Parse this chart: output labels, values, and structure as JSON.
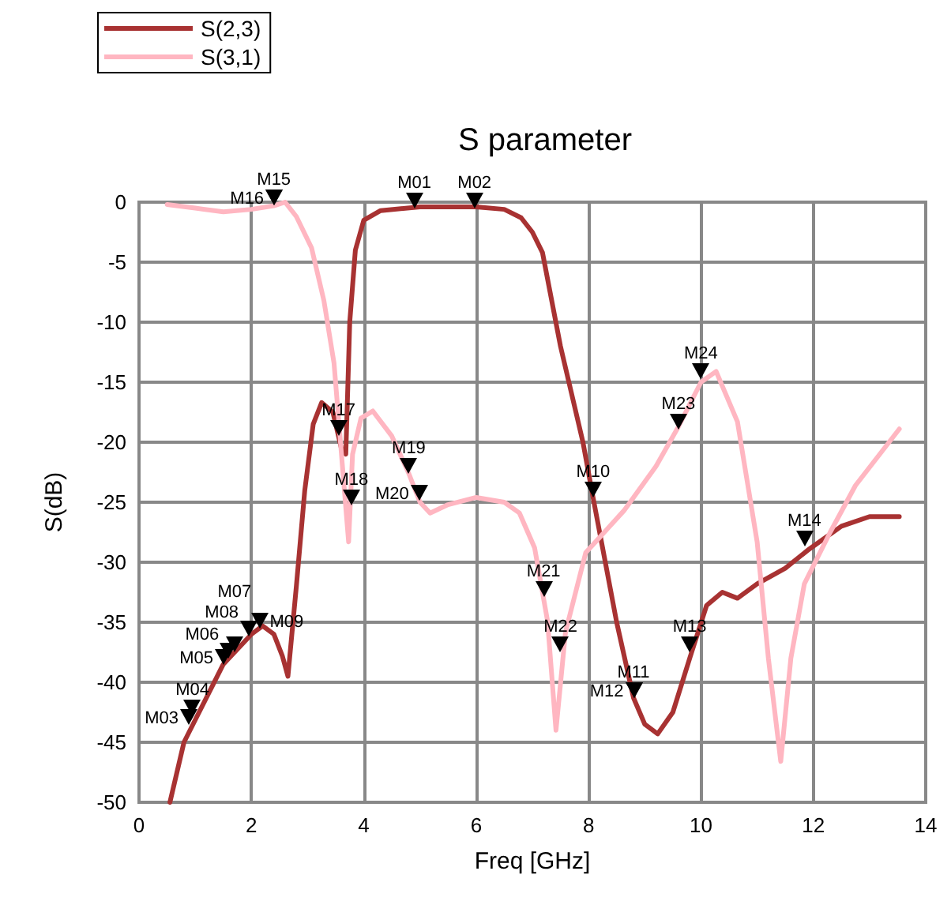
{
  "chart_data": {
    "type": "line",
    "title": "S parameter",
    "xlabel": "Freq [GHz]",
    "ylabel": "S(dB)",
    "xlim": [
      0,
      14
    ],
    "xticks": [
      0,
      2,
      4,
      6,
      8,
      10,
      12,
      14
    ],
    "ylim": [
      -50,
      0
    ],
    "yticks": [
      -50,
      -45,
      -40,
      -35,
      -30,
      -25,
      -20,
      -15,
      -10,
      -5,
      0
    ],
    "grid": true,
    "legend": "top left",
    "marker": "none",
    "line_style": "solid",
    "series": [
      {
        "name": "S(2,3)",
        "color": "#a83232",
        "x": [
          0.55,
          0.8,
          1.5,
          2.0,
          2.2,
          2.4,
          2.55,
          2.65,
          2.8,
          2.95,
          3.1,
          3.25,
          3.45,
          3.6,
          3.68,
          3.75,
          3.85,
          4.0,
          4.3,
          5.0,
          6.0,
          6.5,
          6.8,
          7.0,
          7.18,
          7.5,
          7.9,
          8.08,
          8.5,
          8.8,
          9.0,
          9.23,
          9.5,
          9.8,
          10.1,
          10.38,
          10.65,
          11.0,
          11.5,
          11.9,
          12.5,
          13.0,
          13.53
        ],
        "values": [
          -50,
          -45,
          -38.5,
          -36,
          -35.3,
          -36,
          -37.8,
          -39.5,
          -32,
          -24,
          -18.5,
          -16.7,
          -17.5,
          -20.5,
          -21,
          -10,
          -4,
          -1.5,
          -0.7,
          -0.4,
          -0.4,
          -0.6,
          -1.3,
          -2.5,
          -4.2,
          -12,
          -20,
          -24.6,
          -35,
          -41.3,
          -43.5,
          -44.3,
          -42.5,
          -38,
          -33.6,
          -32.5,
          -33,
          -31.8,
          -30.5,
          -29,
          -27,
          -26.2,
          -26.2
        ]
      },
      {
        "name": "S(3,1)",
        "color": "#ffb6c1",
        "x": [
          0.5,
          1.0,
          1.5,
          2.0,
          2.4,
          2.6,
          2.8,
          3.07,
          3.29,
          3.47,
          3.73,
          3.8,
          3.95,
          4.16,
          4.5,
          4.8,
          5.0,
          5.18,
          5.5,
          6.0,
          6.5,
          6.77,
          7.04,
          7.27,
          7.42,
          7.59,
          7.95,
          8.63,
          9.2,
          9.6,
          10.0,
          10.27,
          10.65,
          11.0,
          11.2,
          11.42,
          11.6,
          11.84,
          12.3,
          12.75,
          13.53
        ],
        "values": [
          -0.2,
          -0.5,
          -0.8,
          -0.6,
          -0.3,
          0,
          -1.2,
          -3.8,
          -8.2,
          -13.4,
          -28.3,
          -21,
          -18,
          -17.4,
          -19.5,
          -22.6,
          -25,
          -25.9,
          -25.2,
          -24.6,
          -25,
          -25.9,
          -28.8,
          -34.9,
          -44,
          -35.8,
          -29.2,
          -25.7,
          -22,
          -18.7,
          -15,
          -14.1,
          -18.3,
          -28.3,
          -38,
          -46.6,
          -38,
          -31.8,
          -27.5,
          -23.6,
          -18.9
        ]
      }
    ],
    "annotations": [
      {
        "text": "M01",
        "x": 4.9,
        "y": -0.5
      },
      {
        "text": "M02",
        "x": 5.97,
        "y": -0.5
      },
      {
        "text": "M03",
        "x": 0.88,
        "y": -43.6
      },
      {
        "text": "M04",
        "x": 0.95,
        "y": -42.7
      },
      {
        "text": "M05",
        "x": 1.5,
        "y": -38.5
      },
      {
        "text": "M06",
        "x": 1.6,
        "y": -38
      },
      {
        "text": "M07",
        "x": 1.7,
        "y": -37.5
      },
      {
        "text": "M08",
        "x": 1.95,
        "y": -36.2
      },
      {
        "text": "M09",
        "x": 2.15,
        "y": -35.5
      },
      {
        "text": "M10",
        "x": 8.08,
        "y": -24.6
      },
      {
        "text": "M11",
        "x": 8.8,
        "y": -41.3
      },
      {
        "text": "M12",
        "x": 8.8,
        "y": -41.3
      },
      {
        "text": "M13",
        "x": 9.8,
        "y": -37.5
      },
      {
        "text": "M14",
        "x": 11.84,
        "y": -28.7
      },
      {
        "text": "M15",
        "x": 2.4,
        "y": -0.3
      },
      {
        "text": "M16",
        "x": 2.4,
        "y": -0.3
      },
      {
        "text": "M17",
        "x": 3.55,
        "y": -19.5
      },
      {
        "text": "M18",
        "x": 3.78,
        "y": -25.3
      },
      {
        "text": "M19",
        "x": 4.8,
        "y": -22.6
      },
      {
        "text": "M20",
        "x": 4.98,
        "y": -24.9
      },
      {
        "text": "M21",
        "x": 7.2,
        "y": -32.9
      },
      {
        "text": "M22",
        "x": 7.5,
        "y": -37.5
      },
      {
        "text": "M23",
        "x": 9.6,
        "y": -18.9
      },
      {
        "text": "M24",
        "x": 10.0,
        "y": -14.7
      }
    ]
  }
}
